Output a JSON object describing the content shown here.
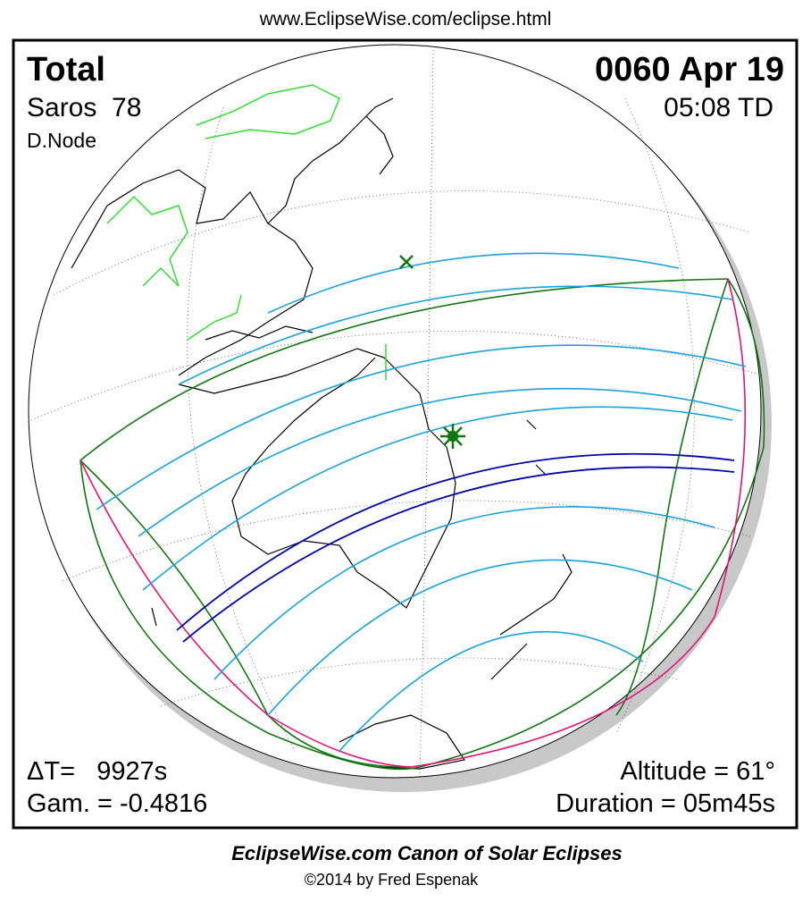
{
  "header": {
    "url": "www.EclipseWise.com/eclipse.html"
  },
  "panel": {
    "type_label": "Total",
    "saros": "Saros  78",
    "node": "D.Node",
    "date": "0060 Apr 19",
    "time": "05:08 TD",
    "delta_t": "ΔT=   9927s",
    "gamma": "Gam. = -0.4816",
    "altitude": "Altitude = 61°",
    "duration": "Duration = 05m45s"
  },
  "footer": {
    "title": "EclipseWise.com Canon of Solar Eclipses",
    "copyright": "©2014 by Fred Espenak"
  }
}
